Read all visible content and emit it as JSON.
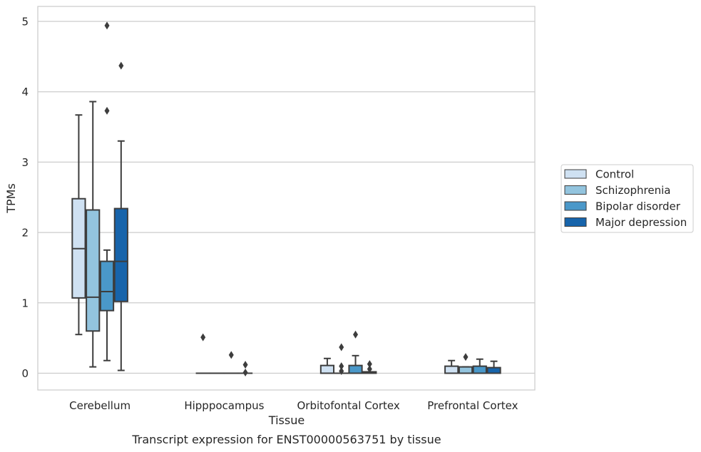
{
  "chart_data": {
    "type": "box",
    "title": "",
    "caption": "Transcript expression for ENST00000563751 by tissue",
    "xlabel": "Tissue",
    "ylabel": "TPMs",
    "ylim": [
      -0.25,
      5.2
    ],
    "yticks": [
      0,
      1,
      2,
      3,
      4,
      5
    ],
    "grid": "horizontal",
    "legend_position": "right",
    "categories": [
      "Cerebellum",
      "Hipppocampus",
      "Orbitofontal Cortex",
      "Prefrontal Cortex"
    ],
    "series": [
      {
        "name": "Control",
        "color": "#cfe1f2",
        "boxes": [
          {
            "whisker_low": 0.55,
            "q1": 1.07,
            "median": 1.77,
            "q3": 2.48,
            "whisker_high": 3.67,
            "outliers": []
          },
          {
            "whisker_low": 0.0,
            "q1": 0.0,
            "median": 0.0,
            "q3": 0.0,
            "whisker_high": 0.0,
            "outliers": [
              0.51
            ]
          },
          {
            "whisker_low": 0.0,
            "q1": 0.0,
            "median": 0.0,
            "q3": 0.11,
            "whisker_high": 0.21,
            "outliers": []
          },
          {
            "whisker_low": 0.0,
            "q1": 0.0,
            "median": 0.0,
            "q3": 0.1,
            "whisker_high": 0.18,
            "outliers": []
          }
        ]
      },
      {
        "name": "Schizophrenia",
        "color": "#93c4de",
        "boxes": [
          {
            "whisker_low": 0.09,
            "q1": 0.6,
            "median": 1.08,
            "q3": 2.32,
            "whisker_high": 3.86,
            "outliers": []
          },
          {
            "whisker_low": 0.0,
            "q1": 0.0,
            "median": 0.0,
            "q3": 0.0,
            "whisker_high": 0.0,
            "outliers": []
          },
          {
            "whisker_low": 0.0,
            "q1": 0.0,
            "median": 0.0,
            "q3": 0.0,
            "whisker_high": 0.0,
            "outliers": [
              0.37,
              0.1,
              0.03
            ]
          },
          {
            "whisker_low": 0.0,
            "q1": 0.0,
            "median": 0.0,
            "q3": 0.09,
            "whisker_high": 0.09,
            "outliers": [
              0.23
            ]
          }
        ]
      },
      {
        "name": "Bipolar disorder",
        "color": "#4a98c9",
        "boxes": [
          {
            "whisker_low": 0.18,
            "q1": 0.89,
            "median": 1.16,
            "q3": 1.59,
            "whisker_high": 1.75,
            "outliers": [
              3.73,
              4.94
            ]
          },
          {
            "whisker_low": 0.0,
            "q1": 0.0,
            "median": 0.0,
            "q3": 0.0,
            "whisker_high": 0.0,
            "outliers": [
              0.26
            ]
          },
          {
            "whisker_low": 0.0,
            "q1": 0.0,
            "median": 0.0,
            "q3": 0.11,
            "whisker_high": 0.25,
            "outliers": [
              0.55
            ]
          },
          {
            "whisker_low": 0.0,
            "q1": 0.0,
            "median": 0.0,
            "q3": 0.1,
            "whisker_high": 0.2,
            "outliers": []
          }
        ]
      },
      {
        "name": "Major depression",
        "color": "#1764ab",
        "boxes": [
          {
            "whisker_low": 0.04,
            "q1": 1.02,
            "median": 1.59,
            "q3": 2.34,
            "whisker_high": 3.3,
            "outliers": [
              4.37
            ]
          },
          {
            "whisker_low": 0.0,
            "q1": 0.0,
            "median": 0.0,
            "q3": 0.0,
            "whisker_high": 0.0,
            "outliers": [
              0.12,
              0.01
            ]
          },
          {
            "whisker_low": 0.0,
            "q1": 0.0,
            "median": 0.0,
            "q3": 0.02,
            "whisker_high": 0.02,
            "outliers": [
              0.13,
              0.06
            ]
          },
          {
            "whisker_low": 0.0,
            "q1": 0.0,
            "median": 0.0,
            "q3": 0.08,
            "whisker_high": 0.17,
            "outliers": []
          }
        ]
      }
    ]
  }
}
